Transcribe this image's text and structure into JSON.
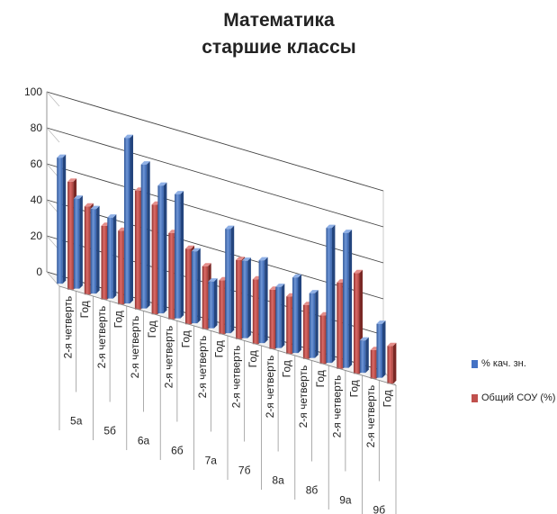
{
  "chart_data": {
    "type": "bar",
    "title": "Математика",
    "subtitle": "старшие классы",
    "groups": [
      "5а",
      "5б",
      "6а",
      "6б",
      "7а",
      "7б",
      "8а",
      "8б",
      "9а",
      "9б"
    ],
    "sublabels": [
      "2-я четверть",
      "Год"
    ],
    "series": [
      {
        "name": "% кач. зн.",
        "color": "#4472C4",
        "values": [
          70,
          50,
          47,
          45,
          92,
          80,
          71,
          69,
          40,
          26,
          58,
          43,
          46,
          34,
          42,
          36,
          75,
          75,
          18,
          30
        ]
      },
      {
        "name": "Общий СОУ (%)",
        "color": "#C0504D",
        "values": [
          60,
          49,
          41,
          41,
          66,
          61,
          48,
          42,
          35,
          30,
          44,
          36,
          33,
          32,
          30,
          27,
          48,
          56,
          16,
          21
        ]
      }
    ],
    "ylim": [
      0,
      100
    ],
    "yticks": [
      0,
      20,
      40,
      60,
      80,
      100
    ],
    "grid": true,
    "legend_position": "right"
  }
}
